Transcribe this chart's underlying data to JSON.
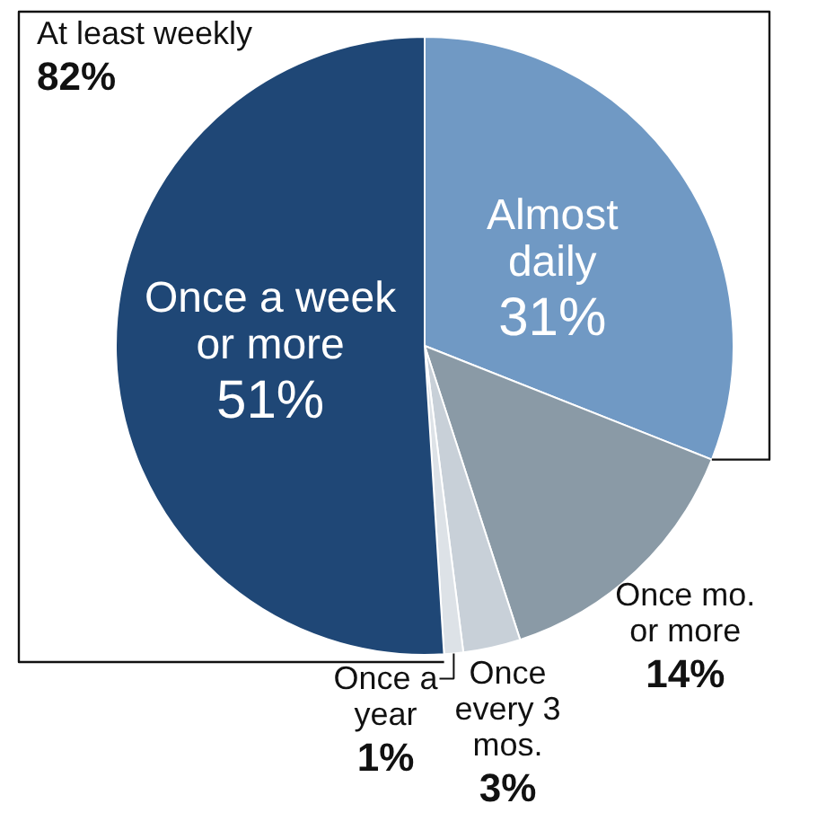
{
  "chart_data": {
    "type": "pie",
    "categories": [
      "Almost daily",
      "Once mo. or more",
      "Once every 3 mos.",
      "Once a year",
      "Once a week or more"
    ],
    "values": [
      31,
      14,
      3,
      1,
      51
    ],
    "colors": [
      "#7099c4",
      "#8a9aa6",
      "#c8d0d8",
      "#dde2e7",
      "#1f4776"
    ],
    "value_labels": [
      "31%",
      "14%",
      "3%",
      "1%",
      "51%"
    ],
    "annotations": [
      "At least weekly 82%"
    ]
  }
}
